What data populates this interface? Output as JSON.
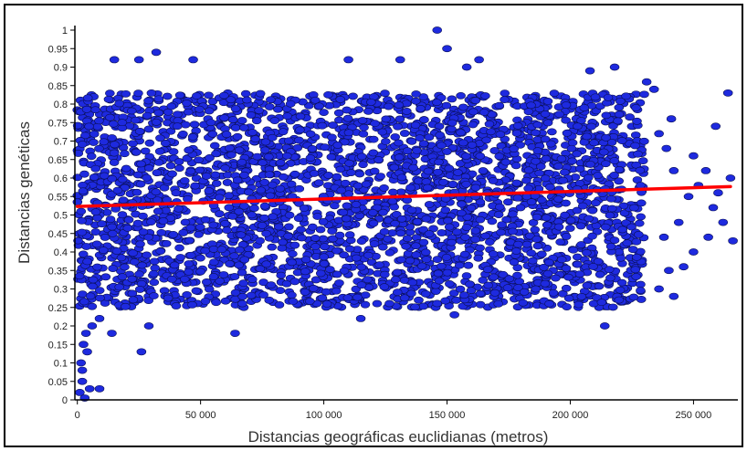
{
  "chart_data": {
    "type": "scatter",
    "title": "",
    "xlabel": "Distancias geográficas euclidianas (metros)",
    "ylabel": "Distancias genéticas",
    "xlim": [
      -1000,
      268000
    ],
    "ylim": [
      0,
      1.0
    ],
    "x_ticks": [
      0,
      50000,
      100000,
      150000,
      200000,
      250000
    ],
    "x_tick_labels": [
      "0",
      "50 000",
      "100 000",
      "150 000",
      "200 000",
      "250 000"
    ],
    "y_ticks": [
      0,
      0.05,
      0.1,
      0.15,
      0.2,
      0.25,
      0.3,
      0.35,
      0.4,
      0.45,
      0.5,
      0.55,
      0.6,
      0.65,
      0.7,
      0.75,
      0.8,
      0.85,
      0.9,
      0.95,
      1
    ],
    "y_tick_labels": [
      "0",
      "0.05",
      "0.1",
      "0.15",
      "0.2",
      "0.25",
      "0.3",
      "0.35",
      "0.4",
      "0.45",
      "0.5",
      "0.55",
      "0.6",
      "0.65",
      "0.7",
      "0.75",
      "0.8",
      "0.85",
      "0.9",
      "0.95",
      "1"
    ],
    "grid": false,
    "series": [
      {
        "color": "#1e2adf",
        "points": [
          [
            1000,
            0.02
          ],
          [
            3000,
            0.005
          ],
          [
            5000,
            0.03
          ],
          [
            9000,
            0.03
          ],
          [
            2000,
            0.05
          ],
          [
            2000,
            0.08
          ],
          [
            1500,
            0.1
          ],
          [
            4000,
            0.13
          ],
          [
            2500,
            0.15
          ],
          [
            3500,
            0.18
          ],
          [
            6000,
            0.2
          ],
          [
            9000,
            0.22
          ],
          [
            14000,
            0.18
          ],
          [
            26000,
            0.13
          ],
          [
            29000,
            0.2
          ],
          [
            146000,
            1.0
          ],
          [
            150000,
            0.95
          ],
          [
            32000,
            0.94
          ],
          [
            15000,
            0.92
          ],
          [
            25000,
            0.92
          ],
          [
            47000,
            0.92
          ],
          [
            110000,
            0.92
          ],
          [
            131000,
            0.92
          ],
          [
            158000,
            0.9
          ],
          [
            163000,
            0.92
          ],
          [
            218000,
            0.9
          ],
          [
            208000,
            0.89
          ],
          [
            231000,
            0.86
          ],
          [
            234000,
            0.84
          ],
          [
            264000,
            0.83
          ],
          [
            259000,
            0.74
          ],
          [
            153000,
            0.23
          ],
          [
            64000,
            0.18
          ],
          [
            115000,
            0.22
          ],
          [
            214000,
            0.2
          ],
          [
            242000,
            0.28
          ],
          [
            236000,
            0.3
          ],
          [
            186000,
            0.3
          ],
          [
            250000,
            0.66
          ],
          [
            255000,
            0.62
          ],
          [
            260000,
            0.56
          ],
          [
            265000,
            0.6
          ],
          [
            262000,
            0.48
          ],
          [
            256000,
            0.44
          ],
          [
            250000,
            0.4
          ],
          [
            246000,
            0.36
          ],
          [
            240000,
            0.35
          ],
          [
            238000,
            0.44
          ],
          [
            252000,
            0.58
          ],
          [
            258000,
            0.52
          ],
          [
            266000,
            0.43
          ],
          [
            244000,
            0.48
          ],
          [
            248000,
            0.55
          ],
          [
            242000,
            0.62
          ],
          [
            239000,
            0.68
          ],
          [
            236000,
            0.72
          ],
          [
            241000,
            0.76
          ]
        ]
      }
    ],
    "point_cloud": {
      "x_range": [
        0,
        230000
      ],
      "y_low": 0.25,
      "y_high": 0.83
    },
    "trendline": {
      "color": "#ff0000",
      "x": [
        0,
        265000
      ],
      "y": [
        0.523,
        0.577
      ]
    }
  }
}
